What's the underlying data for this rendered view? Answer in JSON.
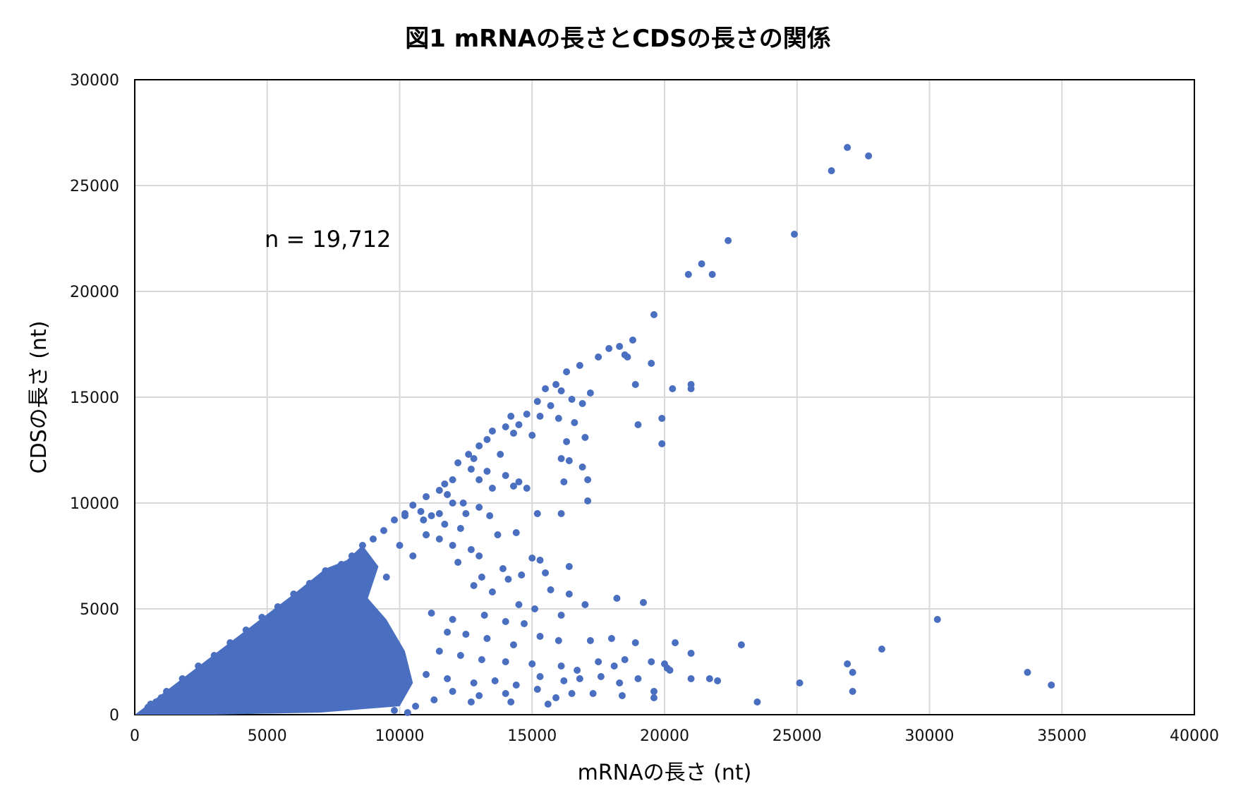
{
  "chart_data": {
    "type": "scatter",
    "title": "図1 mRNAの長さとCDSの長さの関係",
    "xlabel": "mRNAの長さ (nt)",
    "ylabel": "CDSの長さ (nt)",
    "xlim": [
      0,
      40000
    ],
    "ylim": [
      0,
      30000
    ],
    "x_ticks": [
      "0",
      "5000",
      "10000",
      "15000",
      "20000",
      "25000",
      "30000",
      "35000",
      "40000"
    ],
    "y_ticks": [
      "0",
      "5000",
      "10000",
      "15000",
      "20000",
      "25000",
      "30000"
    ],
    "grid": true,
    "legend": "none",
    "marker_color": "#4A6FC0",
    "annotation": "n = 19,712",
    "dense_region": {
      "description_values": "bulk of points bounded by CDS <= mRNA",
      "points": [
        [
          500,
          350
        ],
        [
          800,
          600
        ],
        [
          1000,
          800
        ],
        [
          1200,
          900
        ],
        [
          1500,
          1200
        ],
        [
          1800,
          1300
        ],
        [
          2000,
          1600
        ],
        [
          2200,
          1500
        ],
        [
          2500,
          2000
        ],
        [
          2800,
          2200
        ],
        [
          3000,
          2500
        ],
        [
          3200,
          2300
        ],
        [
          3500,
          2900
        ],
        [
          3800,
          3000
        ],
        [
          4000,
          3300
        ],
        [
          4200,
          3100
        ],
        [
          4500,
          3800
        ],
        [
          4800,
          3900
        ],
        [
          5000,
          4200
        ],
        [
          5200,
          4000
        ],
        [
          5500,
          4700
        ],
        [
          5800,
          4900
        ],
        [
          6000,
          5100
        ],
        [
          6200,
          5400
        ],
        [
          6500,
          5700
        ],
        [
          6800,
          5900
        ],
        [
          7000,
          6100
        ],
        [
          7200,
          6200
        ],
        [
          7500,
          6500
        ],
        [
          1500,
          400
        ],
        [
          2000,
          700
        ],
        [
          2500,
          500
        ],
        [
          3000,
          900
        ],
        [
          3500,
          1200
        ],
        [
          4000,
          800
        ],
        [
          4500,
          1500
        ],
        [
          5000,
          1800
        ],
        [
          5500,
          1000
        ],
        [
          6000,
          2000
        ],
        [
          6500,
          2500
        ],
        [
          7000,
          1500
        ],
        [
          7500,
          3000
        ],
        [
          8000,
          2200
        ],
        [
          8500,
          4000
        ],
        [
          9000,
          3500
        ],
        [
          1000,
          200
        ],
        [
          2000,
          300
        ],
        [
          3000,
          400
        ],
        [
          4000,
          500
        ],
        [
          5000,
          600
        ],
        [
          6000,
          700
        ],
        [
          7000,
          900
        ],
        [
          8000,
          1000
        ],
        [
          9000,
          1200
        ],
        [
          600,
          500
        ],
        [
          1200,
          1100
        ],
        [
          1800,
          1700
        ],
        [
          2400,
          2300
        ],
        [
          3000,
          2800
        ],
        [
          3600,
          3400
        ],
        [
          4200,
          4000
        ],
        [
          4800,
          4600
        ],
        [
          5400,
          5100
        ],
        [
          6000,
          5700
        ],
        [
          6600,
          6200
        ],
        [
          7200,
          6800
        ],
        [
          7800,
          7100
        ],
        [
          8200,
          7500
        ],
        [
          8600,
          8000
        ],
        [
          9000,
          8300
        ],
        [
          9400,
          8700
        ],
        [
          9800,
          9200
        ],
        [
          10200,
          9500
        ],
        [
          5000,
          3000
        ],
        [
          6000,
          4000
        ],
        [
          7000,
          5000
        ],
        [
          8000,
          6000
        ],
        [
          9000,
          7000
        ],
        [
          10000,
          8000
        ],
        [
          5500,
          2500
        ],
        [
          6500,
          3500
        ],
        [
          7500,
          4500
        ],
        [
          8500,
          5500
        ],
        [
          9500,
          6500
        ],
        [
          10500,
          7500
        ],
        [
          11000,
          8500
        ],
        [
          11500,
          9500
        ],
        [
          12000,
          10000
        ]
      ]
    },
    "points": [
      [
        26900,
        26800
      ],
      [
        27700,
        26400
      ],
      [
        26300,
        25700
      ],
      [
        24900,
        22700
      ],
      [
        22400,
        22400
      ],
      [
        21400,
        21300
      ],
      [
        20900,
        20800
      ],
      [
        21800,
        20800
      ],
      [
        19600,
        18900
      ],
      [
        18800,
        17700
      ],
      [
        18300,
        17400
      ],
      [
        17900,
        17300
      ],
      [
        18500,
        17000
      ],
      [
        17500,
        16900
      ],
      [
        18600,
        16900
      ],
      [
        19500,
        16600
      ],
      [
        16800,
        16500
      ],
      [
        16300,
        16200
      ],
      [
        15900,
        15600
      ],
      [
        15500,
        15400
      ],
      [
        16100,
        15300
      ],
      [
        17200,
        15200
      ],
      [
        18900,
        15600
      ],
      [
        20300,
        15400
      ],
      [
        21000,
        15600
      ],
      [
        21000,
        15400
      ],
      [
        15200,
        14800
      ],
      [
        15700,
        14600
      ],
      [
        16500,
        14900
      ],
      [
        16900,
        14700
      ],
      [
        14800,
        14200
      ],
      [
        14200,
        14100
      ],
      [
        15300,
        14100
      ],
      [
        14500,
        13700
      ],
      [
        14000,
        13600
      ],
      [
        16000,
        14000
      ],
      [
        19900,
        14000
      ],
      [
        19000,
        13700
      ],
      [
        13500,
        13400
      ],
      [
        14300,
        13300
      ],
      [
        15000,
        13200
      ],
      [
        16600,
        13800
      ],
      [
        17000,
        13100
      ],
      [
        16300,
        12900
      ],
      [
        13300,
        13000
      ],
      [
        13000,
        12700
      ],
      [
        12600,
        12300
      ],
      [
        12800,
        12100
      ],
      [
        13800,
        12300
      ],
      [
        16100,
        12100
      ],
      [
        16400,
        12000
      ],
      [
        16900,
        11700
      ],
      [
        19900,
        12800
      ],
      [
        12200,
        11900
      ],
      [
        12700,
        11600
      ],
      [
        13300,
        11500
      ],
      [
        14000,
        11300
      ],
      [
        14500,
        11000
      ],
      [
        12000,
        11100
      ],
      [
        11700,
        10900
      ],
      [
        13000,
        11100
      ],
      [
        13500,
        10700
      ],
      [
        14300,
        10800
      ],
      [
        14800,
        10700
      ],
      [
        16200,
        11000
      ],
      [
        17100,
        11100
      ],
      [
        17100,
        10100
      ],
      [
        11500,
        10600
      ],
      [
        11000,
        10300
      ],
      [
        11800,
        10400
      ],
      [
        12400,
        10000
      ],
      [
        13000,
        9800
      ],
      [
        10500,
        9900
      ],
      [
        10800,
        9600
      ],
      [
        11200,
        9400
      ],
      [
        12500,
        9500
      ],
      [
        13400,
        9400
      ],
      [
        15200,
        9500
      ],
      [
        16100,
        9500
      ],
      [
        10200,
        9400
      ],
      [
        10900,
        9200
      ],
      [
        11700,
        9000
      ],
      [
        12300,
        8800
      ],
      [
        13700,
        8500
      ],
      [
        14400,
        8600
      ],
      [
        11000,
        8500
      ],
      [
        11500,
        8300
      ],
      [
        12000,
        8000
      ],
      [
        12700,
        7800
      ],
      [
        13000,
        7500
      ],
      [
        15000,
        7400
      ],
      [
        15300,
        7300
      ],
      [
        16400,
        7000
      ],
      [
        12200,
        7200
      ],
      [
        13900,
        6900
      ],
      [
        14600,
        6600
      ],
      [
        15500,
        6700
      ],
      [
        13100,
        6500
      ],
      [
        14100,
        6400
      ],
      [
        12800,
        6100
      ],
      [
        13500,
        5800
      ],
      [
        15700,
        5900
      ],
      [
        16400,
        5700
      ],
      [
        14500,
        5200
      ],
      [
        15100,
        5000
      ],
      [
        16100,
        4700
      ],
      [
        17000,
        5200
      ],
      [
        18200,
        5500
      ],
      [
        19200,
        5300
      ],
      [
        13200,
        4700
      ],
      [
        14000,
        4400
      ],
      [
        14700,
        4300
      ],
      [
        11200,
        4800
      ],
      [
        12000,
        4500
      ],
      [
        11800,
        3900
      ],
      [
        12500,
        3800
      ],
      [
        13300,
        3600
      ],
      [
        14300,
        3300
      ],
      [
        15300,
        3700
      ],
      [
        16000,
        3500
      ],
      [
        17200,
        3500
      ],
      [
        18000,
        3600
      ],
      [
        18900,
        3400
      ],
      [
        20400,
        3400
      ],
      [
        21000,
        2900
      ],
      [
        22900,
        3300
      ],
      [
        30300,
        4500
      ],
      [
        28200,
        3100
      ],
      [
        11500,
        3000
      ],
      [
        12300,
        2800
      ],
      [
        13100,
        2600
      ],
      [
        14000,
        2500
      ],
      [
        15000,
        2400
      ],
      [
        16100,
        2300
      ],
      [
        16700,
        2100
      ],
      [
        17500,
        2500
      ],
      [
        18100,
        2300
      ],
      [
        18500,
        2600
      ],
      [
        19500,
        2500
      ],
      [
        20000,
        2400
      ],
      [
        20100,
        2200
      ],
      [
        20200,
        2100
      ],
      [
        26900,
        2400
      ],
      [
        27100,
        2000
      ],
      [
        33700,
        2000
      ],
      [
        11000,
        1900
      ],
      [
        11800,
        1700
      ],
      [
        12800,
        1500
      ],
      [
        13600,
        1600
      ],
      [
        14400,
        1400
      ],
      [
        15300,
        1800
      ],
      [
        16200,
        1600
      ],
      [
        16800,
        1700
      ],
      [
        17600,
        1800
      ],
      [
        18300,
        1500
      ],
      [
        19000,
        1700
      ],
      [
        21000,
        1700
      ],
      [
        21700,
        1700
      ],
      [
        22000,
        1600
      ],
      [
        25100,
        1500
      ],
      [
        34600,
        1400
      ],
      [
        12000,
        1100
      ],
      [
        13000,
        900
      ],
      [
        14000,
        1000
      ],
      [
        15200,
        1200
      ],
      [
        15900,
        800
      ],
      [
        16500,
        1000
      ],
      [
        17300,
        1000
      ],
      [
        18400,
        900
      ],
      [
        19600,
        1100
      ],
      [
        19600,
        800
      ],
      [
        27100,
        1100
      ],
      [
        12700,
        600
      ],
      [
        14200,
        600
      ],
      [
        15600,
        500
      ],
      [
        23500,
        600
      ],
      [
        10300,
        100
      ],
      [
        9800,
        200
      ],
      [
        10600,
        400
      ],
      [
        11300,
        700
      ]
    ]
  }
}
